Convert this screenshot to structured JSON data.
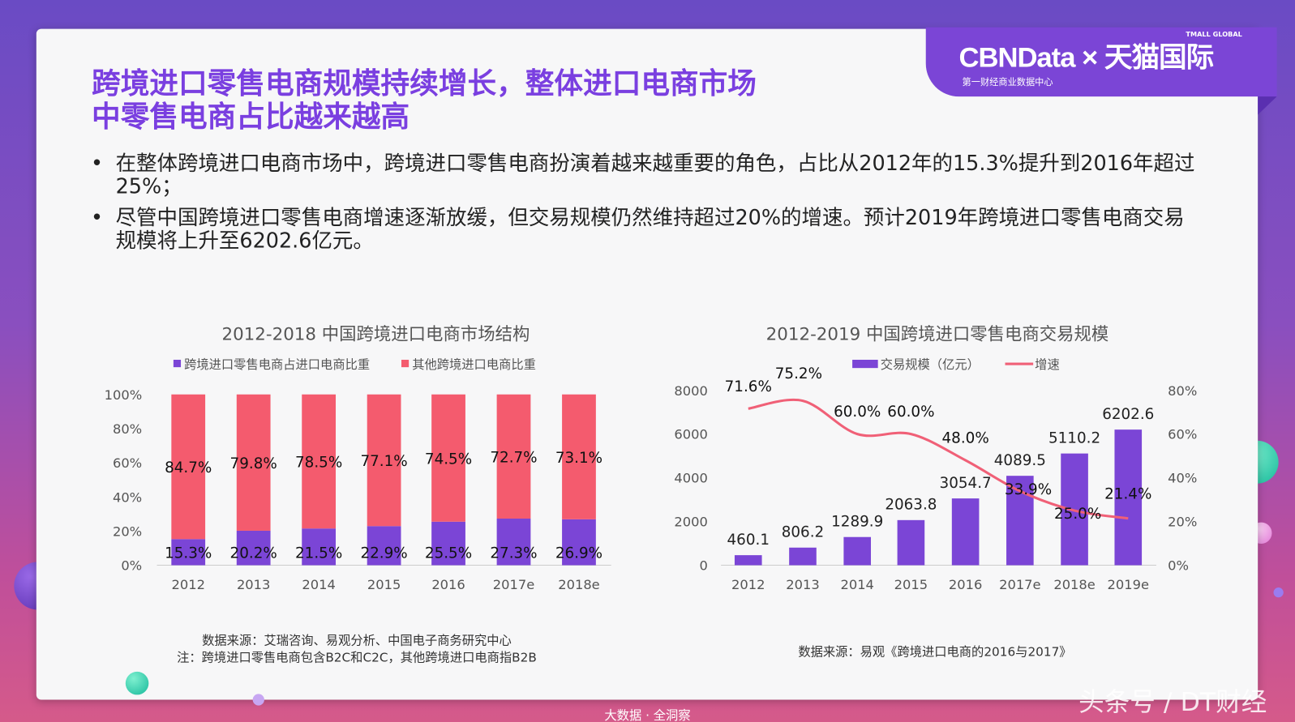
{
  "logo": {
    "brand": "CBNData × 天猫国际",
    "tagline": "第一财经商业数据中心",
    "tmall": "TMALL GLOBAL"
  },
  "title": {
    "line1": "跨境进口零售电商规模持续增长，整体进口电商市场",
    "line2": "中零售电商占比越来越高"
  },
  "bullets": [
    {
      "marker": "•",
      "text": "在整体跨境进口电商市场中，跨境进口零售电商扮演着越来越重要的角色，占比从2012年的15.3%提升到2016年超过25%；"
    },
    {
      "marker": "•",
      "text": "尽管中国跨境进口零售电商增速逐渐放缓，但交易规模仍然维持超过20%的增速。预计2019年跨境进口零售电商交易规模将上升至6202.6亿元。"
    }
  ],
  "footer": "大数据 · 全洞察",
  "watermark": "头条号 / DT财经",
  "chart_data": [
    {
      "type": "bar",
      "stacked": true,
      "title": "2012-2018 中国跨境进口电商市场结构",
      "categories": [
        "2012",
        "2013",
        "2014",
        "2015",
        "2016",
        "2017e",
        "2018e"
      ],
      "series": [
        {
          "name": "跨境进口零售电商占进口电商比重",
          "color": "#7b45d6",
          "values": [
            15.3,
            20.2,
            21.5,
            22.9,
            25.5,
            27.3,
            26.9
          ],
          "labels": [
            "15.3%",
            "20.2%",
            "21.5%",
            "22.9%",
            "25.5%",
            "27.3%",
            "26.9%"
          ]
        },
        {
          "name": "其他跨境进口电商比重",
          "color": "#f45b6e",
          "values": [
            84.7,
            79.8,
            78.5,
            77.1,
            74.5,
            72.7,
            73.1
          ],
          "labels": [
            "84.7%",
            "79.8%",
            "78.5%",
            "77.1%",
            "74.5%",
            "72.7%",
            "73.1%"
          ]
        }
      ],
      "yticks": [
        "0%",
        "20%",
        "40%",
        "60%",
        "80%",
        "100%"
      ],
      "ylim": [
        0,
        100
      ],
      "legend": "top",
      "source": "数据来源：艾瑞咨询、易观分析、中国电子商务研究中心",
      "note": "注：跨境进口零售电商包含B2C和C2C，其他跨境进口电商指B2B"
    },
    {
      "type": "bar+line",
      "title": "2012-2019 中国跨境进口零售电商交易规模",
      "categories": [
        "2012",
        "2013",
        "2014",
        "2015",
        "2016",
        "2017e",
        "2018e",
        "2019e"
      ],
      "series": [
        {
          "name": "交易规模（亿元）",
          "type": "bar",
          "axis": "left",
          "color": "#7b45d6",
          "values": [
            460.1,
            806.2,
            1289.9,
            2063.8,
            3054.7,
            4089.5,
            5110.2,
            6202.6
          ],
          "labels": [
            "460.1",
            "806.2",
            "1289.9",
            "2063.8",
            "3054.7",
            "4089.5",
            "5110.2",
            "6202.6"
          ]
        },
        {
          "name": "增速",
          "type": "line",
          "axis": "right",
          "color": "#f06077",
          "values": [
            71.6,
            75.2,
            60.0,
            60.0,
            48.0,
            33.9,
            25.0,
            21.4
          ],
          "labels": [
            "71.6%",
            "75.2%",
            "60.0%",
            "60.0%",
            "48.0%",
            "33.9%",
            "25.0%",
            "21.4%"
          ]
        }
      ],
      "yticks_left": [
        "0",
        "2000",
        "4000",
        "6000",
        "8000"
      ],
      "ylim_left": [
        0,
        8000
      ],
      "yticks_right": [
        "0%",
        "20%",
        "40%",
        "60%",
        "80%"
      ],
      "ylim_right": [
        0,
        80
      ],
      "legend": "top",
      "source": "数据来源：易观《跨境进口电商的2016与2017》"
    }
  ]
}
